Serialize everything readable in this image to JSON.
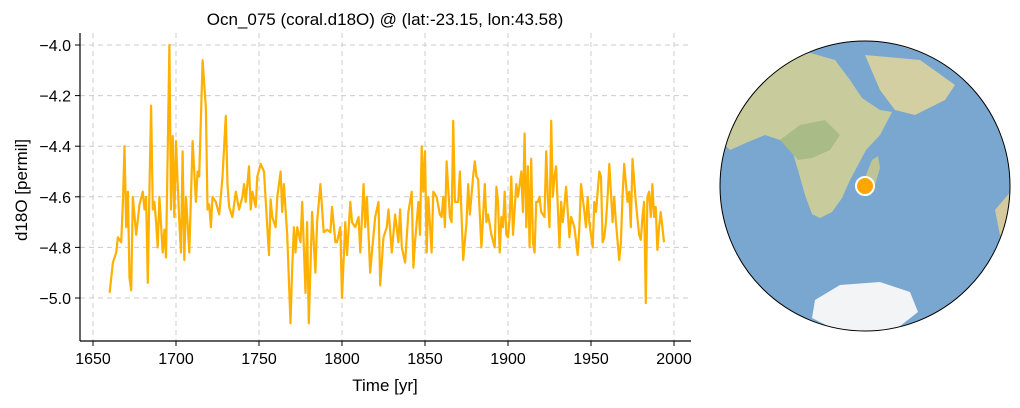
{
  "chart_data": {
    "type": "line",
    "title": "Ocn_075 (coral.d18O) @ (lat:-23.15, lon:43.58)",
    "xlabel": "Time [yr]",
    "ylabel": "d18O [permil]",
    "xlim": [
      1645,
      2010
    ],
    "ylim": [
      -5.17,
      -3.95
    ],
    "xticks": [
      1650,
      1700,
      1750,
      1800,
      1850,
      1900,
      1950,
      2000
    ],
    "yticks": [
      -4.0,
      -4.2,
      -4.4,
      -4.6,
      -4.8,
      -5.0
    ],
    "ytick_labels": [
      "−4.0",
      "−4.2",
      "−4.4",
      "−4.6",
      "−4.8",
      "−5.0"
    ],
    "grid": true,
    "line_color": "#FFB000",
    "series": [
      {
        "name": "Ocn_075",
        "x": [
          1660,
          1662,
          1664,
          1665,
          1667,
          1668,
          1669,
          1670,
          1671,
          1672,
          1673,
          1674,
          1676,
          1678,
          1680,
          1681,
          1682,
          1683,
          1684,
          1685,
          1686,
          1687,
          1688,
          1689,
          1690,
          1692,
          1693,
          1694,
          1696,
          1697,
          1698,
          1699,
          1700,
          1701,
          1702,
          1703,
          1704,
          1705,
          1706,
          1708,
          1710,
          1712,
          1713,
          1714,
          1716,
          1718,
          1719,
          1720,
          1721,
          1722,
          1724,
          1726,
          1727,
          1728,
          1730,
          1731,
          1732,
          1734,
          1736,
          1738,
          1740,
          1741,
          1742,
          1744,
          1745,
          1746,
          1748,
          1749,
          1751,
          1753,
          1755,
          1756,
          1757,
          1758,
          1760,
          1761,
          1763,
          1764,
          1765,
          1767,
          1769,
          1770,
          1771,
          1772,
          1773,
          1775,
          1776,
          1778,
          1779,
          1780,
          1782,
          1784,
          1785,
          1787,
          1789,
          1791,
          1793,
          1794,
          1796,
          1797,
          1799,
          1800,
          1802,
          1803,
          1805,
          1806,
          1808,
          1810,
          1811,
          1813,
          1814,
          1815,
          1817,
          1818,
          1820,
          1822,
          1823,
          1825,
          1827,
          1828,
          1830,
          1832,
          1834,
          1835,
          1836,
          1838,
          1840,
          1842,
          1843,
          1844,
          1846,
          1847,
          1848,
          1849,
          1850,
          1851,
          1852,
          1854,
          1855,
          1857,
          1859,
          1860,
          1861,
          1862,
          1863,
          1865,
          1866,
          1867,
          1868,
          1870,
          1871,
          1873,
          1875,
          1876,
          1877,
          1879,
          1880,
          1881,
          1882,
          1884,
          1886,
          1887,
          1888,
          1890,
          1892,
          1893,
          1894,
          1895,
          1896,
          1897,
          1898,
          1899,
          1900,
          1901,
          1902,
          1903,
          1905,
          1906,
          1908,
          1909,
          1910,
          1911,
          1912,
          1913,
          1914,
          1915,
          1916,
          1917,
          1918,
          1919,
          1920,
          1922,
          1923,
          1924,
          1925,
          1926,
          1927,
          1928,
          1929,
          1931,
          1932,
          1933,
          1935,
          1937,
          1938,
          1940,
          1942,
          1943,
          1944,
          1946,
          1947,
          1948,
          1949,
          1951,
          1952,
          1953,
          1955,
          1956,
          1957,
          1958,
          1959,
          1960,
          1961,
          1962,
          1963,
          1964,
          1965,
          1967,
          1968,
          1969,
          1970,
          1972,
          1973,
          1974,
          1975,
          1977,
          1979,
          1980,
          1981,
          1982,
          1983,
          1984,
          1985,
          1986,
          1987,
          1988,
          1989,
          1990,
          1991,
          1992,
          1993,
          1994
        ],
        "y": [
          -4.98,
          -4.86,
          -4.82,
          -4.76,
          -4.78,
          -4.62,
          -4.4,
          -4.72,
          -4.58,
          -4.92,
          -4.97,
          -4.6,
          -4.75,
          -4.63,
          -4.58,
          -4.65,
          -4.6,
          -4.94,
          -4.58,
          -4.24,
          -4.65,
          -4.62,
          -4.7,
          -4.8,
          -4.6,
          -4.82,
          -4.73,
          -4.84,
          -4.0,
          -4.65,
          -4.36,
          -4.68,
          -4.38,
          -4.55,
          -4.7,
          -4.82,
          -4.42,
          -4.85,
          -4.6,
          -4.82,
          -4.38,
          -4.62,
          -4.5,
          -4.52,
          -4.06,
          -4.25,
          -4.65,
          -4.63,
          -4.72,
          -4.6,
          -4.62,
          -4.67,
          -4.6,
          -4.52,
          -4.28,
          -4.55,
          -4.64,
          -4.68,
          -4.58,
          -4.65,
          -4.6,
          -4.55,
          -4.62,
          -4.48,
          -4.65,
          -4.58,
          -4.64,
          -4.52,
          -4.47,
          -4.5,
          -4.72,
          -4.83,
          -4.61,
          -4.68,
          -4.72,
          -4.6,
          -4.5,
          -4.66,
          -4.55,
          -4.75,
          -5.1,
          -4.88,
          -4.72,
          -4.82,
          -4.72,
          -4.78,
          -4.62,
          -4.98,
          -4.7,
          -5.1,
          -4.66,
          -4.9,
          -4.7,
          -4.55,
          -4.74,
          -4.73,
          -4.74,
          -4.64,
          -4.78,
          -4.78,
          -4.72,
          -5.0,
          -4.7,
          -4.83,
          -4.62,
          -4.7,
          -4.72,
          -4.68,
          -4.82,
          -4.55,
          -4.72,
          -4.6,
          -4.9,
          -4.82,
          -4.68,
          -4.62,
          -4.95,
          -4.76,
          -4.72,
          -4.65,
          -4.82,
          -4.67,
          -4.78,
          -4.65,
          -4.8,
          -4.86,
          -4.66,
          -4.58,
          -4.88,
          -4.78,
          -4.62,
          -4.75,
          -4.4,
          -4.58,
          -4.42,
          -4.82,
          -4.6,
          -4.82,
          -4.58,
          -4.6,
          -4.67,
          -4.68,
          -4.6,
          -4.72,
          -4.46,
          -4.68,
          -4.7,
          -4.3,
          -4.62,
          -4.62,
          -4.5,
          -4.85,
          -4.7,
          -4.55,
          -4.67,
          -4.52,
          -4.46,
          -4.52,
          -4.53,
          -4.8,
          -4.55,
          -4.7,
          -4.67,
          -4.75,
          -4.8,
          -4.56,
          -4.62,
          -4.82,
          -4.68,
          -4.72,
          -4.58,
          -4.75,
          -4.76,
          -4.68,
          -4.52,
          -4.75,
          -4.55,
          -4.6,
          -4.5,
          -4.66,
          -4.35,
          -4.72,
          -4.48,
          -4.8,
          -4.45,
          -4.78,
          -4.82,
          -4.62,
          -4.62,
          -4.6,
          -4.66,
          -4.68,
          -4.42,
          -4.6,
          -4.72,
          -4.3,
          -4.6,
          -4.52,
          -4.48,
          -4.8,
          -4.62,
          -4.7,
          -4.56,
          -4.76,
          -4.68,
          -4.72,
          -4.83,
          -4.72,
          -4.55,
          -4.66,
          -4.72,
          -4.6,
          -4.7,
          -4.8,
          -4.62,
          -4.66,
          -4.5,
          -4.52,
          -4.78,
          -4.76,
          -4.7,
          -4.6,
          -4.47,
          -4.58,
          -4.7,
          -4.6,
          -4.7,
          -4.85,
          -4.78,
          -4.6,
          -4.47,
          -4.62,
          -4.58,
          -4.72,
          -4.45,
          -4.62,
          -4.75,
          -4.77,
          -4.68,
          -4.62,
          -5.02,
          -4.6,
          -4.58,
          -4.68,
          -4.55,
          -4.68,
          -4.64,
          -4.81,
          -4.72,
          -4.66,
          -4.72,
          -4.78
        ]
      }
    ]
  },
  "map": {
    "projection": "orthographic",
    "site_lat": -23.15,
    "site_lon": 43.58,
    "marker_color": "#FFA500",
    "ocean_color": "#7AA7CF",
    "land_color": "#C9CFA0"
  }
}
